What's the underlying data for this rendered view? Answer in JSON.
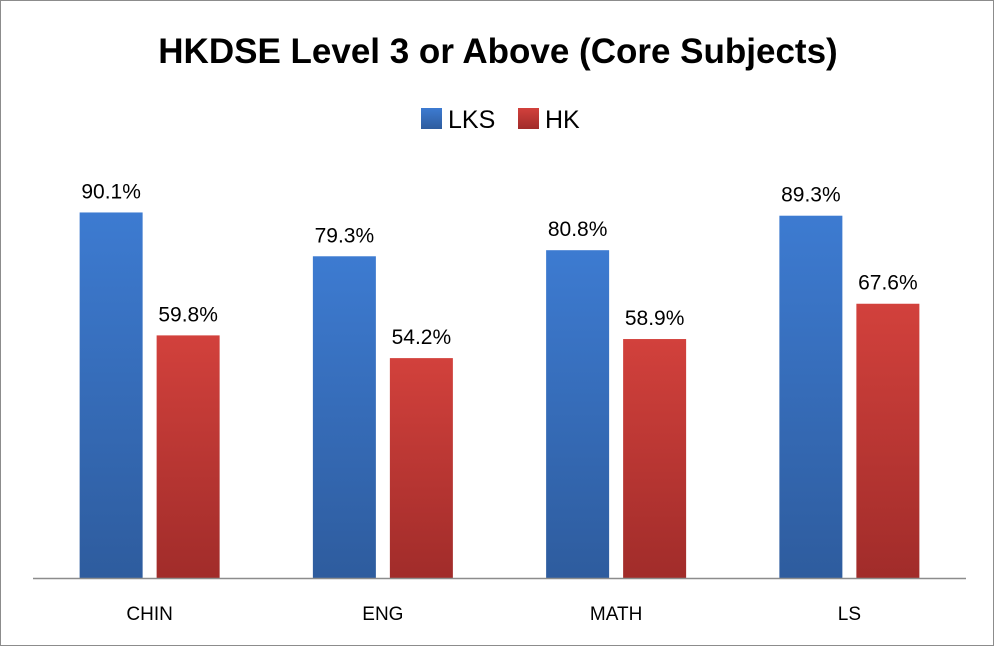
{
  "chart_data": {
    "type": "bar",
    "title": "HKDSE Level 3 or Above (Core Subjects)",
    "categories": [
      "CHIN",
      "ENG",
      "MATH",
      "LS"
    ],
    "series": [
      {
        "name": "LKS",
        "values": [
          90.1,
          79.3,
          80.8,
          89.3
        ],
        "labels": [
          "90.1%",
          "79.3%",
          "80.8%",
          "89.3%"
        ],
        "color": "#3a6fc0"
      },
      {
        "name": "HK",
        "values": [
          59.8,
          54.2,
          58.9,
          67.6
        ],
        "labels": [
          "59.8%",
          "54.2%",
          "58.9%",
          "67.6%"
        ],
        "color": "#c33b38"
      }
    ],
    "xlabel": "",
    "ylabel": "",
    "ylim": [
      0,
      100
    ],
    "grid": false,
    "legend": "top-center"
  }
}
